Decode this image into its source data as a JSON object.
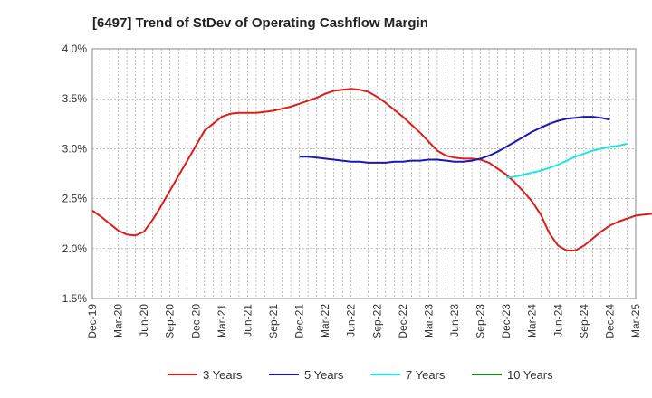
{
  "chart_data": {
    "type": "line",
    "title": "[6497]  Trend of StDev of Operating Cashflow Margin",
    "xlabel": "",
    "ylabel": "",
    "x_ticks": [
      "Dec-19",
      "Mar-20",
      "Jun-20",
      "Sep-20",
      "Dec-20",
      "Mar-21",
      "Jun-21",
      "Sep-21",
      "Dec-21",
      "Mar-22",
      "Jun-22",
      "Sep-22",
      "Dec-22",
      "Mar-23",
      "Jun-23",
      "Sep-23",
      "Dec-23",
      "Mar-24",
      "Jun-24",
      "Sep-24",
      "Dec-24",
      "Mar-25"
    ],
    "y_ticks": [
      "1.5%",
      "2.0%",
      "2.5%",
      "3.0%",
      "3.5%",
      "4.0%"
    ],
    "ylim": [
      1.5,
      4.0
    ],
    "grid": true,
    "legend_position": "bottom",
    "series": [
      {
        "name": "3 Years",
        "color": "#dd1c1c",
        "start_index": 0,
        "values": [
          2.38,
          2.32,
          2.25,
          2.18,
          2.14,
          2.13,
          2.17,
          2.29,
          2.43,
          2.58,
          2.73,
          2.88,
          3.03,
          3.18,
          3.25,
          3.32,
          3.35,
          3.36,
          3.36,
          3.36,
          3.37,
          3.38,
          3.4,
          3.42,
          3.45,
          3.48,
          3.51,
          3.55,
          3.58,
          3.59,
          3.6,
          3.59,
          3.57,
          3.52,
          3.46,
          3.39,
          3.32,
          3.24,
          3.16,
          3.07,
          2.98,
          2.93,
          2.91,
          2.9,
          2.9,
          2.89,
          2.86,
          2.8,
          2.74,
          2.66,
          2.57,
          2.47,
          2.34,
          2.15,
          2.03,
          1.98,
          1.98,
          2.03,
          2.1,
          2.17,
          2.23,
          2.27,
          2.3,
          2.33,
          2.34,
          2.35,
          2.35
        ]
      },
      {
        "name": "5 Years",
        "color": "#1a1aaf",
        "start_index": 24,
        "values": [
          2.92,
          2.92,
          2.91,
          2.9,
          2.89,
          2.88,
          2.87,
          2.87,
          2.86,
          2.86,
          2.86,
          2.87,
          2.87,
          2.88,
          2.88,
          2.89,
          2.89,
          2.88,
          2.87,
          2.87,
          2.88,
          2.9,
          2.93,
          2.97,
          3.02,
          3.07,
          3.12,
          3.17,
          3.21,
          3.25,
          3.28,
          3.3,
          3.31,
          3.32,
          3.32,
          3.31,
          3.29
        ]
      },
      {
        "name": "7 Years",
        "color": "#22e2e2",
        "start_index": 48,
        "values": [
          2.71,
          2.72,
          2.74,
          2.76,
          2.78,
          2.81,
          2.84,
          2.88,
          2.92,
          2.95,
          2.98,
          3.0,
          3.02,
          3.03,
          3.05
        ]
      },
      {
        "name": "10 Years",
        "color": "#1a8a1a",
        "start_index": 0,
        "values": []
      }
    ]
  }
}
